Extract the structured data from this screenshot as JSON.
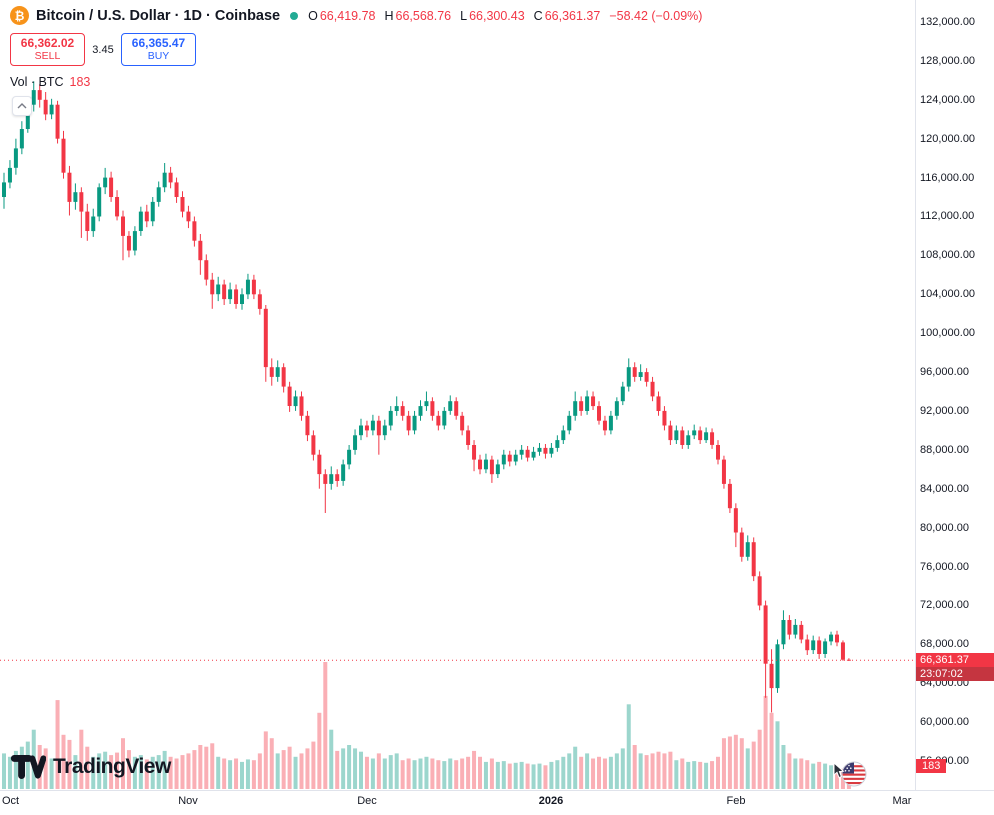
{
  "header": {
    "title": "Bitcoin / U.S. Dollar · 1D · Coinbase",
    "symbol_icon": "bitcoin-icon",
    "ohlc": {
      "o_label": "O",
      "o": "66,419.78",
      "h_label": "H",
      "h": "66,568.76",
      "l_label": "L",
      "l": "66,300.43",
      "c_label": "C",
      "c": "66,361.37",
      "change": "−58.42 (−0.09%)"
    },
    "sell_price": "66,362.02",
    "sell_label": "SELL",
    "spread": "3.45",
    "buy_price": "66,365.47",
    "buy_label": "BUY",
    "indicator_label": "Vol · BTC",
    "indicator_value": "183"
  },
  "watermark": {
    "brand": "TradingView"
  },
  "price_scale": {
    "ticks": [
      "132,000.00",
      "128,000.00",
      "124,000.00",
      "120,000.00",
      "116,000.00",
      "112,000.00",
      "108,000.00",
      "104,000.00",
      "100,000.00",
      "96,000.00",
      "92,000.00",
      "88,000.00",
      "84,000.00",
      "80,000.00",
      "76,000.00",
      "72,000.00",
      "68,000.00",
      "64,000.00",
      "60,000.00",
      "56,000.00"
    ],
    "last_price": "66,361.37",
    "countdown": "23:07:02",
    "volume_value": "183"
  },
  "colors": {
    "up": "#089981",
    "down": "#f23645",
    "vol_up": "rgba(8,153,129,0.4)",
    "vol_down": "rgba(242,54,69,0.4)",
    "buy_blue": "#2962ff",
    "sell_red": "#f23645",
    "btc_orange": "#f7931a",
    "status_teal": "#22ab94",
    "axis_text": "#131722"
  },
  "chart_data": {
    "type": "candlestick",
    "title": "Bitcoin / U.S. Dollar",
    "exchange": "Coinbase",
    "interval": "1D",
    "y_axis": {
      "tick_min": 56000,
      "tick_max": 132000,
      "tick_step": 4000,
      "visible_range": [
        54000,
        133500
      ]
    },
    "x_axis": {
      "month_ticks": [
        {
          "label": "Oct",
          "index": 0
        },
        {
          "label": "Nov",
          "index": 31
        },
        {
          "label": "Dec",
          "index": 61
        },
        {
          "label": "2026",
          "index": 92,
          "year": true
        },
        {
          "label": "Feb",
          "index": 123
        },
        {
          "label": "Mar",
          "index": 151
        }
      ]
    },
    "last": {
      "price": 66361.37,
      "countdown": "23:07:02",
      "volume": 183
    },
    "volume_max_scale": 1500,
    "columns": [
      "open",
      "high",
      "low",
      "close",
      "volume"
    ],
    "candles": [
      [
        114000,
        116500,
        112800,
        115500,
        420
      ],
      [
        115500,
        117800,
        114900,
        117000,
        380
      ],
      [
        117000,
        120000,
        116300,
        119000,
        450
      ],
      [
        119000,
        121800,
        118400,
        121000,
        500
      ],
      [
        121000,
        124200,
        120600,
        123500,
        560
      ],
      [
        123500,
        125900,
        122800,
        125000,
        700
      ],
      [
        125000,
        125600,
        123200,
        124000,
        520
      ],
      [
        124000,
        124800,
        121900,
        122500,
        480
      ],
      [
        122500,
        124100,
        122000,
        123500,
        360
      ],
      [
        123500,
        123900,
        119500,
        120000,
        1050
      ],
      [
        120000,
        120800,
        115900,
        116500,
        640
      ],
      [
        116500,
        117200,
        112100,
        113500,
        580
      ],
      [
        113500,
        115400,
        112700,
        114500,
        400
      ],
      [
        114500,
        115000,
        109800,
        112500,
        700
      ],
      [
        112500,
        113300,
        109500,
        110500,
        500
      ],
      [
        110500,
        112800,
        109900,
        112000,
        380
      ],
      [
        112000,
        115400,
        111500,
        115000,
        420
      ],
      [
        115000,
        117000,
        114300,
        116000,
        440
      ],
      [
        116000,
        116600,
        113500,
        114000,
        400
      ],
      [
        114000,
        114700,
        111600,
        112000,
        430
      ],
      [
        112000,
        112600,
        107500,
        110000,
        600
      ],
      [
        110000,
        110500,
        107800,
        108500,
        460
      ],
      [
        108500,
        111000,
        108000,
        110500,
        380
      ],
      [
        110500,
        113000,
        110000,
        112500,
        400
      ],
      [
        112500,
        113200,
        110900,
        111500,
        350
      ],
      [
        111500,
        114000,
        111000,
        113500,
        380
      ],
      [
        113500,
        115600,
        113000,
        115000,
        400
      ],
      [
        115000,
        117500,
        114500,
        116500,
        450
      ],
      [
        116500,
        117100,
        114900,
        115500,
        380
      ],
      [
        115500,
        116000,
        113400,
        114000,
        360
      ],
      [
        114000,
        114600,
        111900,
        112500,
        400
      ],
      [
        112500,
        113100,
        110800,
        111500,
        420
      ],
      [
        111500,
        112000,
        108900,
        109500,
        460
      ],
      [
        109500,
        110200,
        106000,
        107500,
        520
      ],
      [
        107500,
        108100,
        104900,
        105500,
        500
      ],
      [
        105500,
        106200,
        102500,
        104000,
        540
      ],
      [
        104000,
        105800,
        103300,
        105000,
        380
      ],
      [
        105000,
        105500,
        102900,
        103500,
        360
      ],
      [
        103500,
        105200,
        103000,
        104500,
        340
      ],
      [
        104500,
        105000,
        102500,
        103000,
        360
      ],
      [
        103000,
        104600,
        102400,
        104000,
        320
      ],
      [
        104000,
        106100,
        103500,
        105500,
        350
      ],
      [
        105500,
        106000,
        103500,
        104000,
        340
      ],
      [
        104000,
        104500,
        101900,
        102500,
        420
      ],
      [
        102500,
        102900,
        95000,
        96500,
        680
      ],
      [
        96500,
        97400,
        94600,
        95500,
        600
      ],
      [
        95500,
        97200,
        95000,
        96500,
        420
      ],
      [
        96500,
        96900,
        93900,
        94500,
        460
      ],
      [
        94500,
        95000,
        91900,
        92500,
        500
      ],
      [
        92500,
        94100,
        92000,
        93500,
        380
      ],
      [
        93500,
        94000,
        91000,
        91500,
        420
      ],
      [
        91500,
        92000,
        88900,
        89500,
        480
      ],
      [
        89500,
        90000,
        86900,
        87500,
        560
      ],
      [
        87500,
        88000,
        84000,
        85500,
        900
      ],
      [
        85500,
        86000,
        81500,
        84500,
        1500
      ],
      [
        84500,
        86300,
        83900,
        85500,
        700
      ],
      [
        85500,
        86000,
        84200,
        84800,
        450
      ],
      [
        84800,
        87000,
        84300,
        86500,
        480
      ],
      [
        86500,
        88500,
        86000,
        88000,
        520
      ],
      [
        88000,
        90100,
        87500,
        89500,
        480
      ],
      [
        89500,
        91200,
        89000,
        90500,
        440
      ],
      [
        90500,
        91000,
        89300,
        90000,
        380
      ],
      [
        90000,
        91600,
        89500,
        91000,
        360
      ],
      [
        91000,
        91500,
        87500,
        89500,
        420
      ],
      [
        89500,
        91100,
        89000,
        90500,
        360
      ],
      [
        90500,
        92500,
        90000,
        92000,
        400
      ],
      [
        92000,
        93500,
        91500,
        92500,
        420
      ],
      [
        92500,
        93000,
        91000,
        91500,
        340
      ],
      [
        91500,
        92000,
        89500,
        90000,
        360
      ],
      [
        90000,
        92000,
        89600,
        91500,
        340
      ],
      [
        91500,
        93100,
        91000,
        92500,
        360
      ],
      [
        92500,
        94000,
        92000,
        93000,
        380
      ],
      [
        93000,
        93400,
        91000,
        91500,
        360
      ],
      [
        91500,
        92000,
        90000,
        90500,
        340
      ],
      [
        90500,
        92400,
        90100,
        92000,
        330
      ],
      [
        92000,
        93600,
        91600,
        93000,
        360
      ],
      [
        93000,
        93400,
        91100,
        91500,
        340
      ],
      [
        91500,
        91900,
        89500,
        90000,
        360
      ],
      [
        90000,
        90500,
        88000,
        88500,
        380
      ],
      [
        88500,
        89000,
        85800,
        87000,
        450
      ],
      [
        87000,
        87500,
        85500,
        86000,
        380
      ],
      [
        86000,
        87600,
        85600,
        87000,
        320
      ],
      [
        87000,
        87400,
        84600,
        85500,
        360
      ],
      [
        85500,
        87000,
        85100,
        86500,
        320
      ],
      [
        86500,
        88000,
        86000,
        87500,
        330
      ],
      [
        87500,
        87900,
        86300,
        86800,
        300
      ],
      [
        86800,
        88000,
        86400,
        87500,
        310
      ],
      [
        87500,
        88500,
        87000,
        88000,
        320
      ],
      [
        88000,
        88400,
        86800,
        87200,
        300
      ],
      [
        87200,
        88300,
        86900,
        87800,
        290
      ],
      [
        87800,
        88700,
        87400,
        88200,
        300
      ],
      [
        88200,
        88600,
        87100,
        87600,
        280
      ],
      [
        87600,
        88700,
        87200,
        88200,
        320
      ],
      [
        88200,
        89500,
        87800,
        89000,
        340
      ],
      [
        89000,
        90500,
        88600,
        90000,
        380
      ],
      [
        90000,
        92000,
        89600,
        91500,
        420
      ],
      [
        91500,
        94000,
        91000,
        93000,
        500
      ],
      [
        93000,
        93500,
        91500,
        92000,
        380
      ],
      [
        92000,
        94100,
        91600,
        93500,
        420
      ],
      [
        93500,
        94000,
        92100,
        92500,
        360
      ],
      [
        92500,
        93000,
        90600,
        91000,
        380
      ],
      [
        91000,
        91500,
        89500,
        90000,
        360
      ],
      [
        90000,
        92000,
        89600,
        91500,
        380
      ],
      [
        91500,
        93400,
        91100,
        93000,
        420
      ],
      [
        93000,
        95000,
        92600,
        94500,
        480
      ],
      [
        94500,
        97400,
        94000,
        96500,
        1000
      ],
      [
        96500,
        97000,
        95000,
        95500,
        520
      ],
      [
        95500,
        96800,
        95100,
        96000,
        420
      ],
      [
        96000,
        96400,
        94500,
        95000,
        400
      ],
      [
        95000,
        95500,
        93000,
        93500,
        420
      ],
      [
        93500,
        94000,
        91500,
        92000,
        440
      ],
      [
        92000,
        92500,
        90000,
        90500,
        420
      ],
      [
        90500,
        91000,
        88500,
        89000,
        440
      ],
      [
        89000,
        90500,
        88600,
        90000,
        340
      ],
      [
        90000,
        90400,
        88100,
        88500,
        360
      ],
      [
        88500,
        90000,
        88100,
        89500,
        320
      ],
      [
        89500,
        90600,
        89100,
        90000,
        330
      ],
      [
        90000,
        90400,
        88600,
        89000,
        320
      ],
      [
        89000,
        90300,
        88700,
        89800,
        310
      ],
      [
        89800,
        90200,
        88100,
        88500,
        330
      ],
      [
        88500,
        89000,
        86500,
        87000,
        380
      ],
      [
        87000,
        87400,
        84000,
        84500,
        600
      ],
      [
        84500,
        85000,
        81500,
        82000,
        620
      ],
      [
        82000,
        82500,
        78000,
        79500,
        640
      ],
      [
        79500,
        80000,
        76500,
        77000,
        600
      ],
      [
        77000,
        79200,
        76600,
        78500,
        480
      ],
      [
        78500,
        79000,
        74500,
        75000,
        560
      ],
      [
        75000,
        75500,
        71500,
        72000,
        700
      ],
      [
        72000,
        72500,
        62500,
        66000,
        1100
      ],
      [
        66000,
        67500,
        61000,
        63500,
        900
      ],
      [
        63500,
        68500,
        63000,
        68000,
        800
      ],
      [
        68000,
        71500,
        67500,
        70500,
        520
      ],
      [
        70500,
        71000,
        68500,
        69000,
        420
      ],
      [
        69000,
        70600,
        68600,
        70000,
        360
      ],
      [
        70000,
        70400,
        68100,
        68500,
        360
      ],
      [
        68500,
        69000,
        66900,
        67400,
        340
      ],
      [
        67400,
        68900,
        67000,
        68400,
        300
      ],
      [
        68400,
        68800,
        66500,
        67000,
        320
      ],
      [
        67000,
        68600,
        66600,
        68300,
        300
      ],
      [
        68300,
        69300,
        67900,
        69000,
        280
      ],
      [
        69000,
        69400,
        67800,
        68200,
        260
      ],
      [
        68200,
        68400,
        66300,
        66420,
        240
      ],
      [
        66419.78,
        66568.76,
        66300.43,
        66361.37,
        183
      ]
    ]
  }
}
